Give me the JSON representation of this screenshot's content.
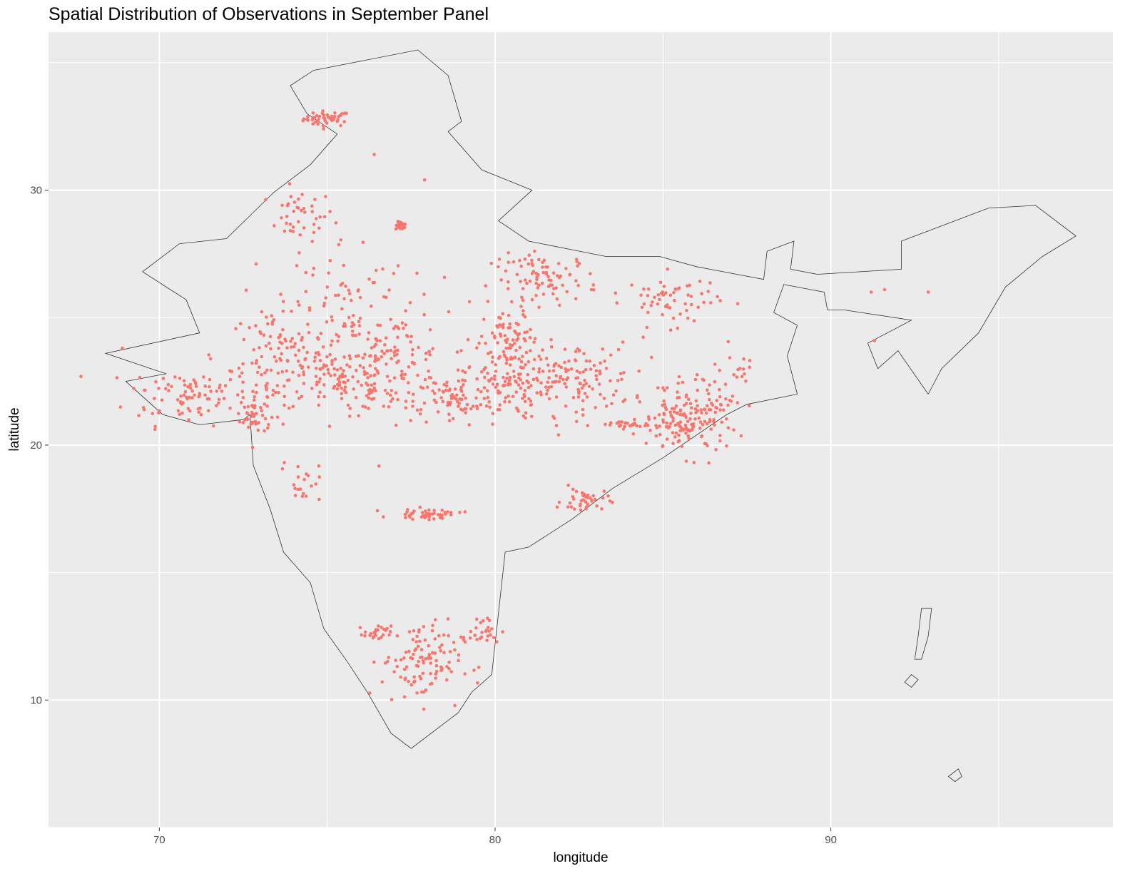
{
  "chart_data": {
    "type": "scatter",
    "title": "Spatial Distribution of Observations in September Panel",
    "xlabel": "longitude",
    "ylabel": "latitude",
    "xlim": [
      66.7,
      98.4
    ],
    "ylim": [
      5.0,
      36.2
    ],
    "x_ticks": [
      70,
      80,
      90
    ],
    "y_ticks": [
      10,
      20,
      30
    ],
    "grid": true,
    "legend": "none",
    "colors": {
      "panel": "#ebebeb",
      "grid": "#ffffff",
      "points": "#f8766d",
      "border": "#333333"
    },
    "clusters": [
      {
        "lon": 75.0,
        "lat": 32.8,
        "sx": 0.35,
        "sy": 0.15,
        "n": 45
      },
      {
        "lon": 74.2,
        "lat": 29.0,
        "sx": 0.5,
        "sy": 0.5,
        "n": 40
      },
      {
        "lon": 77.2,
        "lat": 28.6,
        "sx": 0.08,
        "sy": 0.08,
        "n": 25
      },
      {
        "lon": 70.8,
        "lat": 22.0,
        "sx": 0.9,
        "sy": 0.6,
        "n": 90
      },
      {
        "lon": 72.8,
        "lat": 21.2,
        "sx": 0.2,
        "sy": 0.4,
        "n": 40
      },
      {
        "lon": 73.5,
        "lat": 23.3,
        "sx": 0.7,
        "sy": 1.0,
        "n": 110
      },
      {
        "lon": 75.5,
        "lat": 22.6,
        "sx": 0.8,
        "sy": 0.7,
        "n": 110
      },
      {
        "lon": 77.0,
        "lat": 23.2,
        "sx": 0.8,
        "sy": 1.0,
        "n": 120
      },
      {
        "lon": 78.8,
        "lat": 21.7,
        "sx": 0.6,
        "sy": 0.5,
        "n": 70
      },
      {
        "lon": 75.5,
        "lat": 25.8,
        "sx": 1.0,
        "sy": 1.2,
        "n": 80
      },
      {
        "lon": 80.2,
        "lat": 22.6,
        "sx": 0.6,
        "sy": 0.8,
        "n": 120
      },
      {
        "lon": 80.5,
        "lat": 24.2,
        "sx": 0.4,
        "sy": 0.5,
        "n": 50
      },
      {
        "lon": 82.3,
        "lat": 22.6,
        "sx": 0.9,
        "sy": 0.7,
        "n": 130
      },
      {
        "lon": 81.5,
        "lat": 26.5,
        "sx": 0.8,
        "sy": 0.5,
        "n": 90
      },
      {
        "lon": 85.3,
        "lat": 25.7,
        "sx": 0.7,
        "sy": 0.5,
        "n": 60
      },
      {
        "lon": 85.7,
        "lat": 20.8,
        "sx": 0.6,
        "sy": 0.6,
        "n": 130
      },
      {
        "lon": 84.0,
        "lat": 20.8,
        "sx": 0.5,
        "sy": 0.08,
        "n": 25
      },
      {
        "lon": 82.7,
        "lat": 17.8,
        "sx": 0.35,
        "sy": 0.25,
        "n": 40
      },
      {
        "lon": 78.0,
        "lat": 17.3,
        "sx": 0.5,
        "sy": 0.1,
        "n": 45
      },
      {
        "lon": 74.2,
        "lat": 18.6,
        "sx": 0.3,
        "sy": 0.4,
        "n": 20
      },
      {
        "lon": 77.8,
        "lat": 11.5,
        "sx": 0.6,
        "sy": 0.8,
        "n": 110
      },
      {
        "lon": 76.5,
        "lat": 12.6,
        "sx": 0.2,
        "sy": 0.15,
        "n": 25
      },
      {
        "lon": 79.6,
        "lat": 12.7,
        "sx": 0.3,
        "sy": 0.3,
        "n": 25
      },
      {
        "lon": 87.3,
        "lat": 23.0,
        "sx": 0.4,
        "sy": 0.5,
        "n": 15
      },
      {
        "lon": 86.0,
        "lat": 21.8,
        "sx": 0.7,
        "sy": 0.6,
        "n": 50
      }
    ],
    "singles": [
      [
        91.2,
        26.0
      ],
      [
        91.6,
        26.1
      ],
      [
        92.9,
        26.0
      ],
      [
        91.3,
        24.1
      ],
      [
        77.9,
        30.4
      ],
      [
        76.4,
        31.4
      ],
      [
        68.9,
        23.8
      ]
    ],
    "outline": [
      [
        74.6,
        34.7
      ],
      [
        77.7,
        35.5
      ],
      [
        78.6,
        34.5
      ],
      [
        79.0,
        32.7
      ],
      [
        78.6,
        32.3
      ],
      [
        79.6,
        30.8
      ],
      [
        81.1,
        30.0
      ],
      [
        80.1,
        28.8
      ],
      [
        81.0,
        28.0
      ],
      [
        83.3,
        27.4
      ],
      [
        84.9,
        27.4
      ],
      [
        86.0,
        27.0
      ],
      [
        88.0,
        26.5
      ],
      [
        88.1,
        27.6
      ],
      [
        88.9,
        28.0
      ],
      [
        88.8,
        26.9
      ],
      [
        89.6,
        26.7
      ],
      [
        92.1,
        26.9
      ],
      [
        92.1,
        28.0
      ],
      [
        94.7,
        29.3
      ],
      [
        96.1,
        29.4
      ],
      [
        97.3,
        28.2
      ],
      [
        96.3,
        27.4
      ],
      [
        95.2,
        26.2
      ],
      [
        94.4,
        24.4
      ],
      [
        93.3,
        23.0
      ],
      [
        92.9,
        22.0
      ],
      [
        92.0,
        23.7
      ],
      [
        91.4,
        23.0
      ],
      [
        91.1,
        24.0
      ],
      [
        92.4,
        24.9
      ],
      [
        90.4,
        25.3
      ],
      [
        89.9,
        25.3
      ],
      [
        89.8,
        26.0
      ],
      [
        88.6,
        26.3
      ],
      [
        88.3,
        25.2
      ],
      [
        89.0,
        24.7
      ],
      [
        88.7,
        23.5
      ],
      [
        89.0,
        22.0
      ],
      [
        87.5,
        21.6
      ],
      [
        86.9,
        21.2
      ],
      [
        85.0,
        19.5
      ],
      [
        83.5,
        18.3
      ],
      [
        82.3,
        17.1
      ],
      [
        81.0,
        16.0
      ],
      [
        80.3,
        15.8
      ],
      [
        80.1,
        13.4
      ],
      [
        79.9,
        11.0
      ],
      [
        79.3,
        10.3
      ],
      [
        78.9,
        9.5
      ],
      [
        77.5,
        8.1
      ],
      [
        76.9,
        8.7
      ],
      [
        76.2,
        10.3
      ],
      [
        75.6,
        11.5
      ],
      [
        74.9,
        12.8
      ],
      [
        74.5,
        14.6
      ],
      [
        73.7,
        15.8
      ],
      [
        73.3,
        17.5
      ],
      [
        72.8,
        19.2
      ],
      [
        72.7,
        21.2
      ],
      [
        72.5,
        21.0
      ],
      [
        71.2,
        20.8
      ],
      [
        70.1,
        21.2
      ],
      [
        69.0,
        22.5
      ],
      [
        70.2,
        22.8
      ],
      [
        68.4,
        23.6
      ],
      [
        71.2,
        24.4
      ],
      [
        70.8,
        25.7
      ],
      [
        69.5,
        26.8
      ],
      [
        70.6,
        27.9
      ],
      [
        72.0,
        28.1
      ],
      [
        73.4,
        29.9
      ],
      [
        74.5,
        31.0
      ],
      [
        75.3,
        32.2
      ],
      [
        74.4,
        33.0
      ],
      [
        73.9,
        34.1
      ],
      [
        74.6,
        34.7
      ]
    ],
    "islands": [
      [
        [
          92.7,
          13.6
        ],
        [
          93.0,
          13.6
        ],
        [
          92.9,
          12.5
        ],
        [
          92.7,
          11.6
        ],
        [
          92.5,
          11.6
        ],
        [
          92.6,
          12.5
        ],
        [
          92.7,
          13.6
        ]
      ],
      [
        [
          92.4,
          11.0
        ],
        [
          92.6,
          10.8
        ],
        [
          92.4,
          10.5
        ],
        [
          92.2,
          10.7
        ],
        [
          92.4,
          11.0
        ]
      ],
      [
        [
          93.8,
          7.3
        ],
        [
          93.9,
          7.0
        ],
        [
          93.7,
          6.8
        ],
        [
          93.5,
          7.0
        ],
        [
          93.8,
          7.3
        ]
      ]
    ]
  }
}
